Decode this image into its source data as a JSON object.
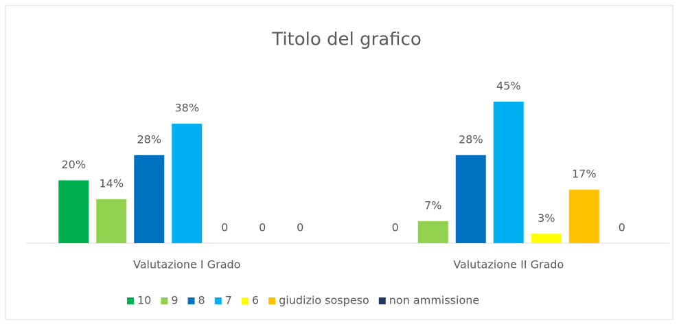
{
  "chart_data": {
    "type": "bar",
    "title": "Titolo del grafico",
    "categories": [
      "Valutazione I Grado",
      "Valutazione II Grado"
    ],
    "series": [
      {
        "name": "10",
        "color": "#00b050",
        "values": [
          20,
          0
        ],
        "value_labels": [
          "20%",
          "0"
        ]
      },
      {
        "name": "9",
        "color": "#92d050",
        "values": [
          14,
          7
        ],
        "value_labels": [
          "14%",
          "7%"
        ]
      },
      {
        "name": "8",
        "color": "#0070c0",
        "values": [
          28,
          28
        ],
        "value_labels": [
          "28%",
          "28%"
        ]
      },
      {
        "name": "7",
        "color": "#00b0f0",
        "values": [
          38,
          45
        ],
        "value_labels": [
          "38%",
          "45%"
        ]
      },
      {
        "name": "6",
        "color": "#ffff00",
        "values": [
          0,
          3
        ],
        "value_labels": [
          "0",
          "3%"
        ]
      },
      {
        "name": "giudizio sospeso",
        "color": "#ffc000",
        "values": [
          0,
          17
        ],
        "value_labels": [
          "0",
          "17%"
        ]
      },
      {
        "name": "non ammissione",
        "color": "#203864",
        "values": [
          0,
          0
        ],
        "value_labels": [
          "0",
          "0"
        ]
      }
    ],
    "legend": "bottom"
  }
}
